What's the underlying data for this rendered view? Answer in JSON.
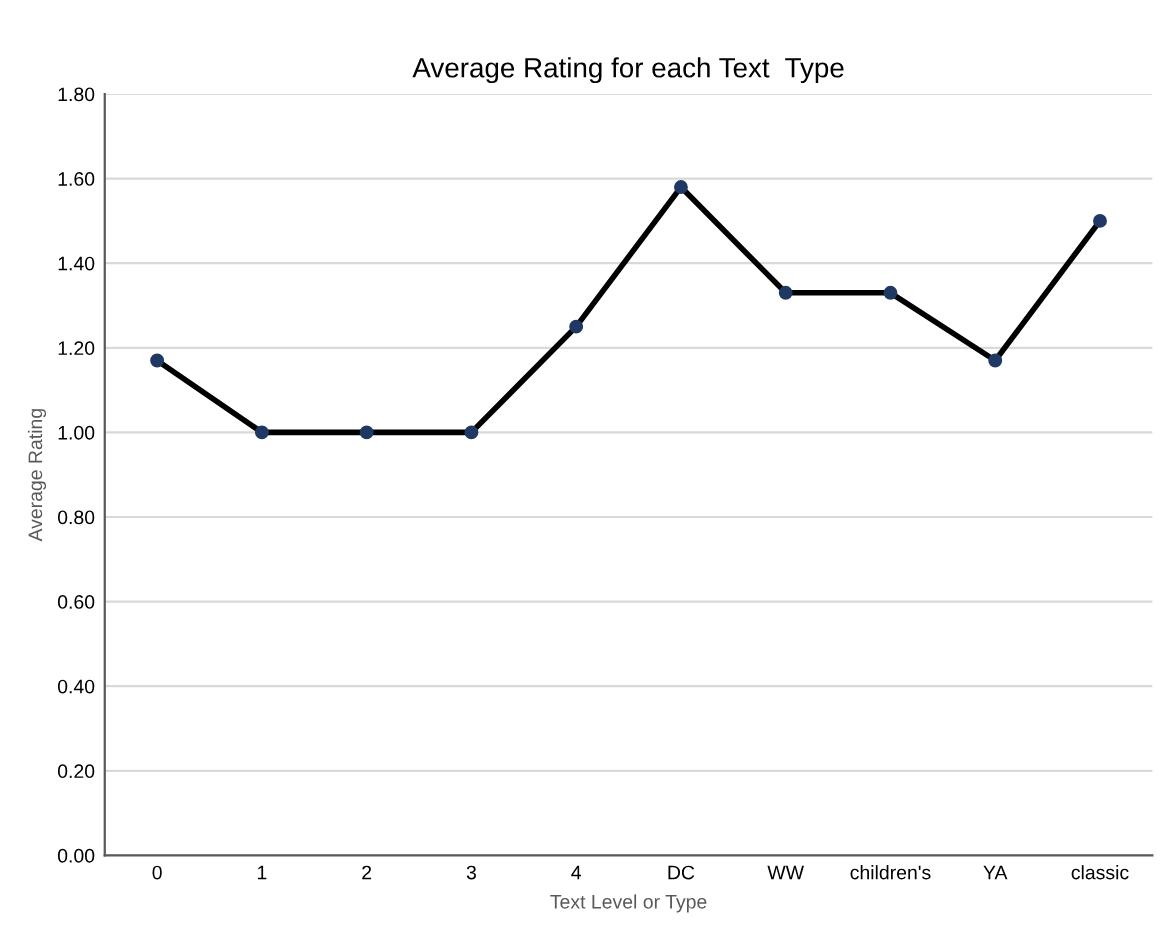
{
  "chart_data": {
    "type": "line",
    "title": "Average Rating for each Text  Type",
    "xlabel": "Text Level or Type",
    "ylabel": "Average Rating",
    "categories": [
      "0",
      "1",
      "2",
      "3",
      "4",
      "DC",
      "WW",
      "children's",
      "YA",
      "classic"
    ],
    "series": [
      {
        "color": "#000000",
        "values": [
          1.17,
          1.0,
          1.0,
          1.0,
          1.25,
          1.58,
          1.33,
          1.33,
          1.17,
          1.5
        ]
      }
    ],
    "ylim": [
      0,
      1.8
    ],
    "yticks": [
      {
        "value": 0,
        "label": "0.00"
      },
      {
        "value": 0.2,
        "label": "0.20"
      },
      {
        "value": 0.4,
        "label": "0.40"
      },
      {
        "value": 0.6,
        "label": "0.60"
      },
      {
        "value": 0.8,
        "label": "0.80"
      },
      {
        "value": 1.0,
        "label": "1.00"
      },
      {
        "value": 1.2,
        "label": "1.20"
      },
      {
        "value": 1.4,
        "label": "1.40"
      },
      {
        "value": 1.6,
        "label": "1.60"
      },
      {
        "value": 1.8,
        "label": "1.80"
      }
    ],
    "grid": "y",
    "marker": "circle",
    "line_style": "solid"
  }
}
